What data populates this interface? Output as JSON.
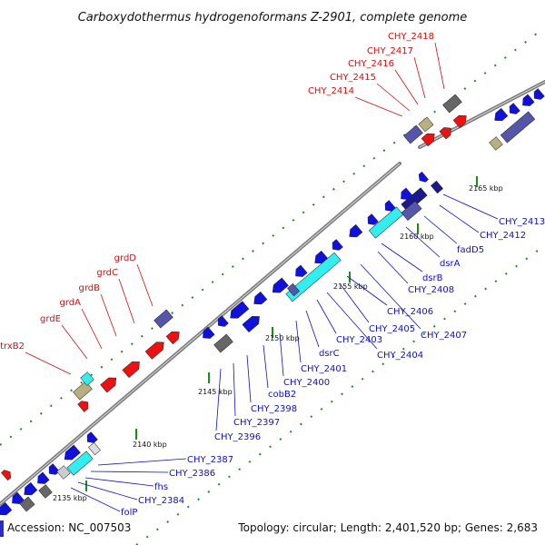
{
  "header": {
    "title": "Carboxydothermus hydrogenoformans Z-2901, complete genome"
  },
  "footer": {
    "accession": "Accession: NC_007503",
    "summary": "Topology: circular; Length: 2,401,520 bp; Genes: 2,683"
  },
  "ticks": [
    "2135 kbp",
    "2140 kbp",
    "2145 kbp",
    "2150 kbp",
    "2155 kbp",
    "2160 kbp",
    "2165 kbp"
  ],
  "colors": {
    "forward_cds": "#ee1111",
    "reverse_cds": "#1111dd",
    "rna": "#33eeee",
    "other": "#b8b080",
    "gray": "#666666",
    "purple": "#5555aa",
    "label_forward": "#d01010",
    "label_reverse": "#1010c0",
    "tick": "#1e8a1e"
  },
  "labels_forward": [
    "trxB2",
    "grdE",
    "grdA",
    "grdB",
    "grdC",
    "grdD",
    "CHY_2414",
    "CHY_2415",
    "CHY_2416",
    "CHY_2417",
    "CHY_2418"
  ],
  "labels_reverse": [
    "CHY_2387",
    "CHY_2386",
    "fhs",
    "CHY_2384",
    "folP",
    "CHY_2396",
    "CHY_2397",
    "CHY_2398",
    "cobB2",
    "CHY_2400",
    "CHY_2401",
    "dsrC",
    "CHY_2403",
    "CHY_2404",
    "CHY_2405",
    "CHY_2406",
    "CHY_2407",
    "CHY_2408",
    "dsrB",
    "dsrA",
    "fadD5",
    "CHY_2412",
    "CHY_2413"
  ]
}
